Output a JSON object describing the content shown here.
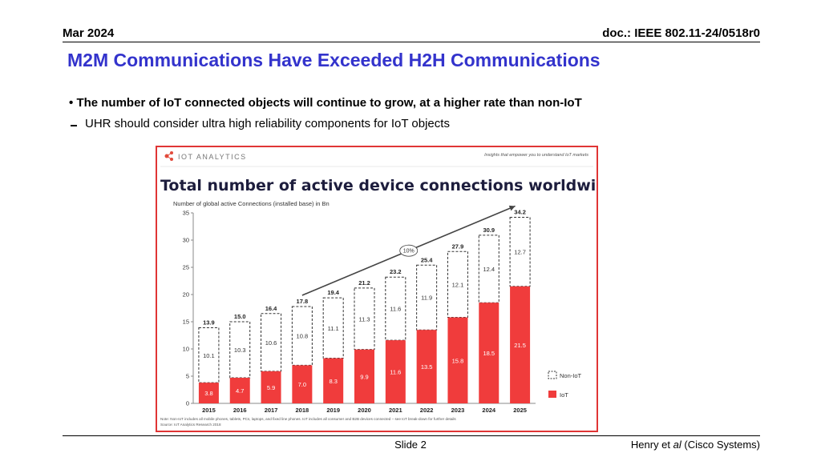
{
  "slide": {
    "date": "Mar 2024",
    "doc": "doc.: IEEE 802.11-24/0518r0",
    "title": "M2M Communications Have Exceeded H2H Communications",
    "bullet": "The number of IoT connected objects will continue to grow, at a higher rate than non-IoT",
    "sub_bullet": "UHR  should consider ultra high reliability components for IoT objects",
    "footer_center": "Slide 2",
    "footer_right_prefix": "Henry et ",
    "footer_right_italic": "al",
    "footer_right_suffix": " (Cisco Systems)"
  },
  "figure": {
    "brand": "IOT ANALYTICS",
    "tagline": "Insights that empower you to understand IoT markets",
    "note": "Note: Non-IoT includes all mobile phones, tablets, PCs, laptops, and fixed line phones. IoT includes all consumer and B2B devices connected – see IoT break-down for further details",
    "source": "Source: IoT Analytics Research 2018",
    "growth_label": "10%"
  },
  "chart_data": {
    "type": "bar",
    "stacked": true,
    "title": "Total number of active device connections worldwide",
    "ylabel": "Number of global active Connections (installed base) in Bn",
    "categories": [
      "2015",
      "2016",
      "2017",
      "2018",
      "2019",
      "2020",
      "2021",
      "2022",
      "2023",
      "2024",
      "2025"
    ],
    "series": [
      {
        "name": "IoT",
        "values": [
          3.8,
          4.7,
          5.9,
          7.0,
          8.3,
          9.9,
          11.6,
          13.5,
          15.8,
          18.5,
          21.5
        ],
        "color": "#f03c3c"
      },
      {
        "name": "Non-IoT",
        "values": [
          10.1,
          10.3,
          10.6,
          10.8,
          11.1,
          11.3,
          11.6,
          11.9,
          12.1,
          12.4,
          12.7
        ],
        "color": "#ffffff"
      }
    ],
    "totals": [
      13.9,
      15.0,
      16.4,
      17.8,
      19.4,
      21.2,
      23.2,
      25.4,
      27.9,
      30.9,
      34.2
    ],
    "ylim": [
      0,
      35
    ],
    "yticks": [
      0,
      5,
      10,
      15,
      20,
      25,
      30,
      35
    ],
    "legend_position": "bottom-right"
  }
}
